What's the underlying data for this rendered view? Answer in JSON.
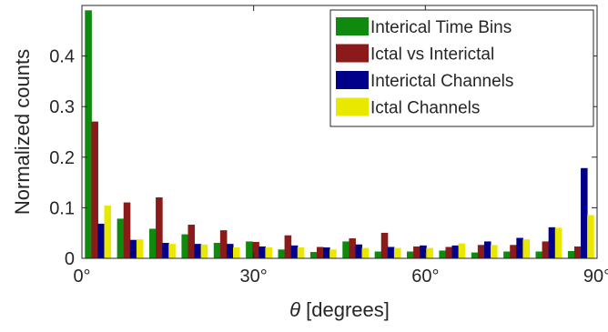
{
  "chart_data": {
    "type": "bar",
    "xlabel_symbol": "θ",
    "xlabel_rest": " [degrees]",
    "ylabel": "Normalized counts",
    "xlim": [
      0,
      90
    ],
    "ylim": [
      0,
      0.5
    ],
    "x_tick_values": [
      0,
      30,
      60,
      90
    ],
    "x_tick_labels": [
      "0°",
      "30°",
      "60°",
      "90°"
    ],
    "y_tick_values": [
      0,
      0.1,
      0.2,
      0.3,
      0.4
    ],
    "y_tick_labels": [
      "0",
      "0.1",
      "0.2",
      "0.3",
      "0.4"
    ],
    "bin_width": 5.625,
    "bin_centers": [
      2.8125,
      8.4375,
      14.0625,
      19.6875,
      25.3125,
      30.9375,
      36.5625,
      42.1875,
      47.8125,
      53.4375,
      59.0625,
      64.6875,
      70.3125,
      75.9375,
      81.5625,
      87.1875
    ],
    "legend_position": "top-right",
    "series": [
      {
        "name": "Interical Time Bins",
        "color": "#0f8a0f",
        "values": [
          0.49,
          0.078,
          0.058,
          0.047,
          0.03,
          0.033,
          0.017,
          0.012,
          0.033,
          0.013,
          0.013,
          0.015,
          0.011,
          0.013,
          0.013,
          0.014
        ]
      },
      {
        "name": "Ictal vs Interictal",
        "color": "#8b1a1a",
        "values": [
          0.27,
          0.11,
          0.12,
          0.066,
          0.055,
          0.032,
          0.045,
          0.022,
          0.039,
          0.05,
          0.023,
          0.022,
          0.026,
          0.026,
          0.033,
          0.023
        ]
      },
      {
        "name": "Interictal Channels",
        "color": "#00008b",
        "values": [
          0.068,
          0.036,
          0.03,
          0.028,
          0.028,
          0.023,
          0.025,
          0.021,
          0.027,
          0.022,
          0.025,
          0.025,
          0.033,
          0.04,
          0.061,
          0.178
        ]
      },
      {
        "name": "Ictal Channels",
        "color": "#e8e800",
        "values": [
          0.104,
          0.037,
          0.028,
          0.027,
          0.021,
          0.021,
          0.021,
          0.017,
          0.02,
          0.02,
          0.02,
          0.029,
          0.026,
          0.037,
          0.06,
          0.085
        ]
      }
    ]
  }
}
